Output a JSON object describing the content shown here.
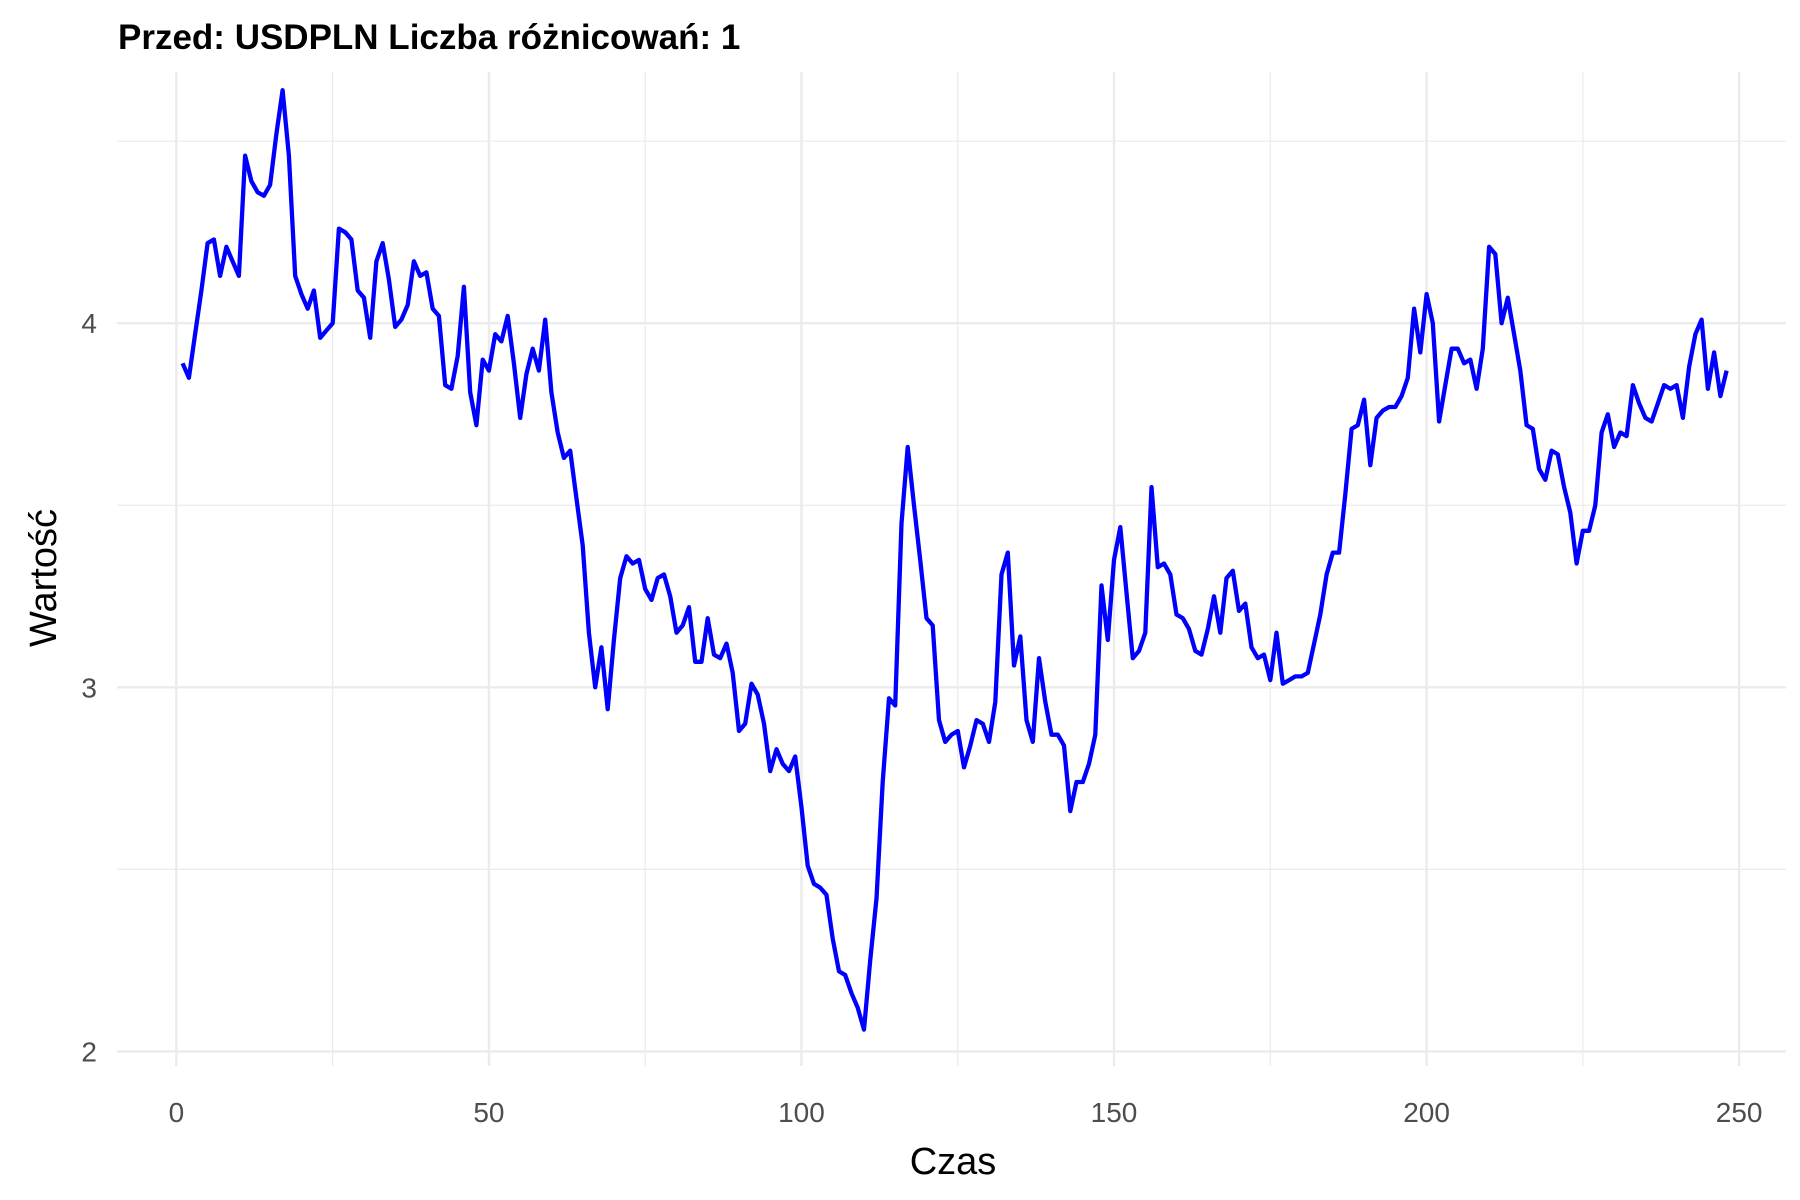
{
  "chart_data": {
    "type": "line",
    "title": "Przed: USDPLN Liczba różnicowań:  1",
    "xlabel": "Czas",
    "ylabel": "Wartość",
    "xlim": [
      -9.5,
      257.5
    ],
    "ylim": [
      1.96,
      4.69
    ],
    "x_ticks": [
      0,
      50,
      100,
      150,
      200,
      250
    ],
    "x_tick_labels": [
      "0",
      "50",
      "100",
      "150",
      "200",
      "250"
    ],
    "y_ticks": [
      2,
      3,
      4
    ],
    "y_tick_labels": [
      "2",
      "3",
      "4"
    ],
    "x_minor_gridlines": [
      25,
      75,
      125,
      175,
      225
    ],
    "y_minor_gridlines": [
      2.5,
      3.5,
      4.5
    ],
    "grid": true,
    "line_color": "#0000ff",
    "grid_color": "#ebebeb",
    "series": [
      {
        "x": [
          1,
          2,
          3,
          4,
          5,
          6,
          7,
          8,
          9,
          10,
          11,
          12,
          13,
          14,
          15,
          16,
          17,
          18,
          19,
          20,
          21,
          22,
          23,
          24,
          25,
          26,
          27,
          28,
          29,
          30,
          31,
          32,
          33,
          34,
          35,
          36,
          37,
          38,
          39,
          40,
          41,
          42,
          43,
          44,
          45,
          46,
          47,
          48,
          49,
          50,
          51,
          52,
          53,
          54,
          55,
          56,
          57,
          58,
          59,
          60,
          61,
          62,
          63,
          64,
          65,
          66,
          67,
          68,
          69,
          70,
          71,
          72,
          73,
          74,
          75,
          76,
          77,
          78,
          79,
          80,
          81,
          82,
          83,
          84,
          85,
          86,
          87,
          88,
          89,
          90,
          91,
          92,
          93,
          94,
          95,
          96,
          97,
          98,
          99,
          100,
          101,
          102,
          103,
          104,
          105,
          106,
          107,
          108,
          109,
          110,
          111,
          112,
          113,
          114,
          115,
          116,
          117,
          118,
          119,
          120,
          121,
          122,
          123,
          124,
          125,
          126,
          127,
          128,
          129,
          130,
          131,
          132,
          133,
          134,
          135,
          136,
          137,
          138,
          139,
          140,
          141,
          142,
          143,
          144,
          145,
          146,
          147,
          148,
          149,
          150,
          151,
          152,
          153,
          154,
          155,
          156,
          157,
          158,
          159,
          160,
          161,
          162,
          163,
          164,
          165,
          166,
          167,
          168,
          169,
          170,
          171,
          172,
          173,
          174,
          175,
          176,
          177,
          178,
          179,
          180,
          181,
          182,
          183,
          184,
          185,
          186,
          187,
          188,
          189,
          190,
          191,
          192,
          193,
          194,
          195,
          196,
          197,
          198,
          199,
          200,
          201,
          202,
          203,
          204,
          205,
          206,
          207,
          208,
          209,
          210,
          211,
          212,
          213,
          214,
          215,
          216,
          217,
          218,
          219,
          220,
          221,
          222,
          223,
          224,
          225,
          226,
          227,
          228,
          229,
          230,
          231,
          232,
          233,
          234,
          235,
          236,
          237,
          238,
          239,
          240,
          241,
          242,
          243,
          244,
          245,
          246,
          247,
          248
        ],
        "values": [
          3.89,
          3.85,
          3.97,
          4.09,
          4.22,
          4.23,
          4.13,
          4.21,
          4.17,
          4.13,
          4.46,
          4.39,
          4.36,
          4.35,
          4.38,
          4.52,
          4.64,
          4.46,
          4.13,
          4.08,
          4.04,
          4.09,
          3.96,
          3.98,
          4.0,
          4.26,
          4.25,
          4.23,
          4.09,
          4.07,
          3.96,
          4.17,
          4.22,
          4.12,
          3.99,
          4.01,
          4.05,
          4.17,
          4.13,
          4.14,
          4.04,
          4.02,
          3.83,
          3.82,
          3.91,
          4.1,
          3.81,
          3.72,
          3.9,
          3.87,
          3.97,
          3.95,
          4.02,
          3.89,
          3.74,
          3.86,
          3.93,
          3.87,
          4.01,
          3.81,
          3.7,
          3.63,
          3.65,
          3.52,
          3.39,
          3.15,
          3.0,
          3.11,
          2.94,
          3.13,
          3.3,
          3.36,
          3.34,
          3.35,
          3.27,
          3.24,
          3.3,
          3.31,
          3.25,
          3.15,
          3.17,
          3.22,
          3.07,
          3.07,
          3.19,
          3.09,
          3.08,
          3.12,
          3.04,
          2.88,
          2.9,
          3.01,
          2.98,
          2.9,
          2.77,
          2.83,
          2.79,
          2.77,
          2.81,
          2.67,
          2.51,
          2.46,
          2.45,
          2.43,
          2.31,
          2.22,
          2.21,
          2.16,
          2.12,
          2.06,
          2.25,
          2.42,
          2.74,
          2.97,
          2.95,
          3.45,
          3.66,
          3.5,
          3.35,
          3.19,
          3.17,
          2.91,
          2.85,
          2.87,
          2.88,
          2.78,
          2.84,
          2.91,
          2.9,
          2.85,
          2.96,
          3.31,
          3.37,
          3.06,
          3.14,
          2.91,
          2.85,
          3.08,
          2.96,
          2.87,
          2.87,
          2.84,
          2.66,
          2.74,
          2.74,
          2.79,
          2.87,
          3.28,
          3.13,
          3.35,
          3.44,
          3.26,
          3.08,
          3.1,
          3.15,
          3.55,
          3.33,
          3.34,
          3.31,
          3.2,
          3.19,
          3.16,
          3.1,
          3.09,
          3.16,
          3.25,
          3.15,
          3.3,
          3.32,
          3.21,
          3.23,
          3.11,
          3.08,
          3.09,
          3.02,
          3.15,
          3.01,
          3.02,
          3.03,
          3.03,
          3.04,
          3.12,
          3.2,
          3.31,
          3.37,
          3.37,
          3.53,
          3.71,
          3.72,
          3.79,
          3.61,
          3.74,
          3.76,
          3.77,
          3.77,
          3.8,
          3.85,
          4.04,
          3.92,
          4.08,
          4.0,
          3.73,
          3.83,
          3.93,
          3.93,
          3.89,
          3.9,
          3.82,
          3.93,
          4.21,
          4.19,
          4.0,
          4.07,
          3.97,
          3.87,
          3.72,
          3.71,
          3.6,
          3.57,
          3.65,
          3.64,
          3.55,
          3.48,
          3.34,
          3.43,
          3.43,
          3.5,
          3.7,
          3.75,
          3.66,
          3.7,
          3.69,
          3.83,
          3.78,
          3.74,
          3.73,
          3.78,
          3.83,
          3.82,
          3.83,
          3.74,
          3.88,
          3.97,
          4.01,
          3.82,
          3.92,
          3.8,
          3.87
        ]
      }
    ]
  }
}
